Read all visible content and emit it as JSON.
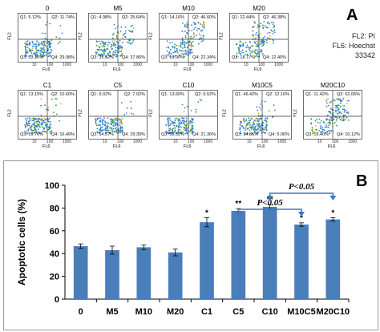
{
  "panel_a": {
    "letter": "A",
    "legend": [
      "FL2: PI",
      "FL6: Hoechst",
      "33342"
    ],
    "y_axis_label": "FL2",
    "x_axis_label": "FL6",
    "tick_10": "10",
    "tick_100": "100",
    "tick_1000": "1000",
    "plots": [
      {
        "title": "0",
        "q1": "Q1: 5.12%",
        "q2": "Q2: 11.74%",
        "q3": "Q3: 53.16%",
        "q4": "Q4: 29.98%"
      },
      {
        "title": "M5",
        "q1": "Q1: 4.98%",
        "q2": "Q2: 25.64%",
        "q3": "Q3: 31.52%",
        "q4": "Q4: 37.86%"
      },
      {
        "title": "M10",
        "q1": "Q1: 14.16%",
        "q2": "Q2: 46.60%",
        "q3": "Q3: 16.90%",
        "q4": "Q4: 22.34%"
      },
      {
        "title": "M20",
        "q1": "Q1: 22.44%",
        "q2": "Q2: 46.38%",
        "q3": "Q3: 18.77%",
        "q4": "Q4: 12.40%"
      },
      {
        "title": "C1",
        "q1": "Q1: 13.15%",
        "q2": "Q2: 10.60%",
        "q3": "Q3: 59.76%",
        "q4": "Q4: 16.49%"
      },
      {
        "title": "C5",
        "q1": "Q1: 9.02%",
        "q2": "Q2: 7.02%",
        "q3": "Q3: 54.57%",
        "q4": "Q4: 29.39%"
      },
      {
        "title": "C10",
        "q1": "Q1: 13.60%",
        "q2": "Q2: 6.52%",
        "q3": "Q3: 58.52%",
        "q4": "Q4: 21.36%"
      },
      {
        "title": "M10C5",
        "q1": "Q1: 46.42%",
        "q2": "Q2: 12.16%",
        "q3": "Q3: 34.36%",
        "q4": "Q4: 5.06%"
      },
      {
        "title": "M20C10",
        "q1": "Q1: 11.42%",
        "q2": "Q2: 62.06%",
        "q3": "Q3: 16.40%",
        "q4": "Q4: 10.12%"
      }
    ]
  },
  "panel_b": {
    "letter": "B",
    "comparisons": [
      {
        "label": "P<0.05",
        "from": "C5",
        "to": "M10C5"
      },
      {
        "label": "P<0.05",
        "from": "C10",
        "to": "M20C10"
      }
    ]
  },
  "chart_data": {
    "type": "bar",
    "title": "",
    "xlabel": "",
    "ylabel": "Apoptotic cells (%)",
    "ylim": [
      0,
      100
    ],
    "yticks": [
      0,
      20,
      40,
      60,
      80,
      100
    ],
    "grid": false,
    "bar_color": "#4a7ebb",
    "categories": [
      "0",
      "M5",
      "M10",
      "M20",
      "C1",
      "C5",
      "C10",
      "M10C5",
      "M20C10"
    ],
    "values": [
      46.5,
      43,
      45.5,
      41,
      67.5,
      77.5,
      81,
      65.5,
      70
    ],
    "errors": [
      2,
      3.5,
      2,
      3,
      4,
      2,
      2,
      1.5,
      1.5
    ],
    "significance": [
      "",
      "",
      "",
      "",
      "*",
      "**",
      "**",
      "*",
      "*"
    ]
  }
}
